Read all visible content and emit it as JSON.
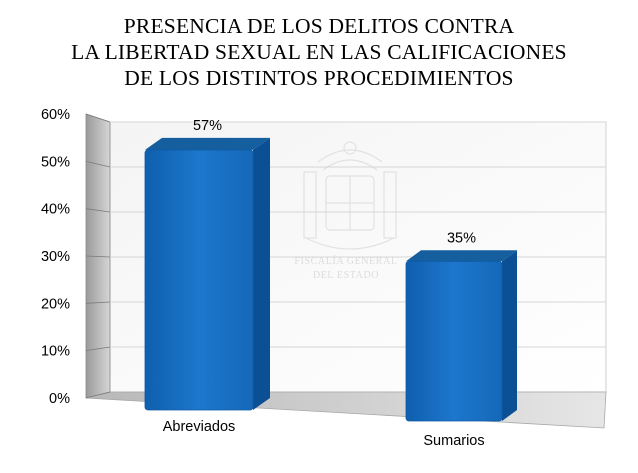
{
  "chart_data": {
    "type": "bar",
    "title_lines": [
      "PRESENCIA DE LOS DELITOS CONTRA",
      "LA LIBERTAD SEXUAL EN LAS CALIFICACIONES",
      "DE LOS DISTINTOS PROCEDIMIENTOS"
    ],
    "categories": [
      "Abreviados",
      "Sumarios"
    ],
    "values": [
      57,
      35
    ],
    "data_labels": [
      "57%",
      "35%"
    ],
    "y_ticks": [
      "0%",
      "10%",
      "20%",
      "30%",
      "40%",
      "50%",
      "60%"
    ],
    "ylim": [
      0,
      60
    ],
    "grid": true,
    "legend": "none",
    "style": "3d",
    "bar_color": "#1a6fc0"
  },
  "watermark": {
    "line1": "FISCALÍA GENERAL",
    "line2": "DEL ESTADO"
  }
}
